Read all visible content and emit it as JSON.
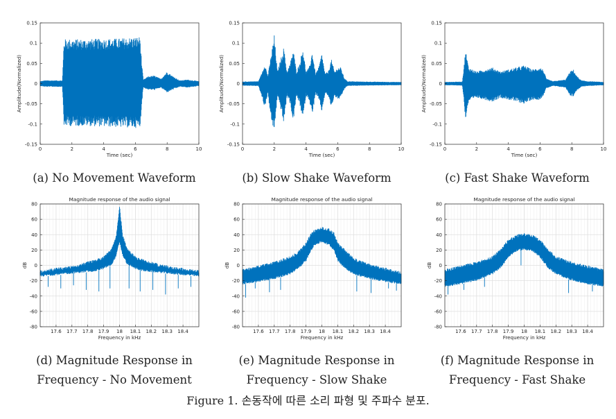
{
  "figure_caption": "Figure 1. 손동작에 따른 소리 파형 및 주파수 분포.",
  "captions": {
    "a": "(a) No Movement Waveform",
    "b": "(b) Slow Shake Waveform",
    "c": "(c) Fast Shake Waveform",
    "d1": "(d) Magnitude Response in",
    "d2": "Frequency - No Movement",
    "e1": "(e) Magnitude Response in",
    "e2": "Frequency - Slow Shake",
    "f1": "(f) Magnitude Response in",
    "f2": "Frequency - Fast Shake"
  },
  "colors": {
    "series": "#0072BD",
    "axis": "#262626",
    "grid": "#dfdfdf",
    "background": "#ffffff"
  },
  "chart_data": [
    {
      "id": "a",
      "type": "line",
      "title": "",
      "xlabel": "Time (sec)",
      "ylabel": "Amplitude(Normalized)",
      "xlim": [
        0,
        10
      ],
      "ylim": [
        -0.15,
        0.15
      ],
      "xticks": [
        0,
        2,
        4,
        6,
        8,
        10
      ],
      "yticks": [
        -0.15,
        -0.1,
        -0.05,
        0,
        0.05,
        0.1,
        0.15
      ],
      "grid": false,
      "envelope": {
        "x": [
          0,
          0.3,
          1.4,
          1.5,
          1.6,
          3,
          5,
          6.3,
          6.4,
          6.5,
          6.8,
          7.2,
          7.6,
          8.0,
          8.3,
          8.8,
          9.3,
          10
        ],
        "upper": [
          0.006,
          0.008,
          0.008,
          0.11,
          0.11,
          0.11,
          0.112,
          0.116,
          0.05,
          0.01,
          0.018,
          0.02,
          0.012,
          0.03,
          0.02,
          0.008,
          0.01,
          0.006
        ],
        "lower": [
          -0.006,
          -0.008,
          -0.008,
          -0.11,
          -0.105,
          -0.105,
          -0.108,
          -0.11,
          -0.05,
          -0.01,
          -0.015,
          -0.016,
          -0.01,
          -0.022,
          -0.016,
          -0.008,
          -0.01,
          -0.006
        ]
      }
    },
    {
      "id": "b",
      "type": "line",
      "title": "",
      "xlabel": "Time (sec)",
      "ylabel": "Amplitude(Normalized)",
      "xlim": [
        0,
        10
      ],
      "ylim": [
        -0.15,
        0.15
      ],
      "xticks": [
        0,
        2,
        4,
        6,
        8,
        10
      ],
      "yticks": [
        -0.15,
        -0.1,
        -0.05,
        0,
        0.05,
        0.1,
        0.15
      ],
      "grid": false,
      "envelope": {
        "x": [
          0,
          1.0,
          1.2,
          1.4,
          1.6,
          1.8,
          2.0,
          2.2,
          2.4,
          2.6,
          2.8,
          3.0,
          3.2,
          3.4,
          3.6,
          3.8,
          4.0,
          4.2,
          4.4,
          4.6,
          4.8,
          5.0,
          5.2,
          5.4,
          5.6,
          5.8,
          6.0,
          6.2,
          6.4,
          6.6,
          7.5,
          10
        ],
        "upper": [
          0.005,
          0.006,
          0.025,
          0.05,
          0.02,
          0.07,
          0.12,
          0.03,
          0.06,
          0.09,
          0.03,
          0.05,
          0.085,
          0.03,
          0.05,
          0.09,
          0.03,
          0.04,
          0.08,
          0.025,
          0.04,
          0.075,
          0.025,
          0.03,
          0.06,
          0.03,
          0.04,
          0.04,
          0.015,
          0.006,
          0.005,
          0.004
        ],
        "lower": [
          -0.005,
          -0.006,
          -0.03,
          -0.06,
          -0.025,
          -0.09,
          -0.12,
          -0.03,
          -0.06,
          -0.1,
          -0.03,
          -0.05,
          -0.095,
          -0.03,
          -0.05,
          -0.09,
          -0.03,
          -0.04,
          -0.08,
          -0.025,
          -0.04,
          -0.07,
          -0.025,
          -0.03,
          -0.06,
          -0.03,
          -0.04,
          -0.035,
          -0.015,
          -0.006,
          -0.005,
          -0.004
        ]
      }
    },
    {
      "id": "c",
      "type": "line",
      "title": "",
      "xlabel": "Time (sec)",
      "ylabel": "Amplitude(Normalized)",
      "xlim": [
        0,
        10
      ],
      "ylim": [
        -0.15,
        0.15
      ],
      "xticks": [
        0,
        2,
        4,
        6,
        8,
        10
      ],
      "yticks": [
        -0.15,
        -0.1,
        -0.05,
        0,
        0.05,
        0.1,
        0.15
      ],
      "grid": false,
      "envelope": {
        "x": [
          0,
          1.1,
          1.2,
          1.3,
          1.5,
          2,
          2.5,
          3,
          3.5,
          4,
          4.5,
          5,
          5.5,
          6,
          6.2,
          6.4,
          6.8,
          7.2,
          7.6,
          7.9,
          8.1,
          8.3,
          8.6,
          9,
          10
        ],
        "upper": [
          0.004,
          0.005,
          0.04,
          0.085,
          0.04,
          0.03,
          0.035,
          0.04,
          0.03,
          0.035,
          0.04,
          0.045,
          0.035,
          0.04,
          0.035,
          0.012,
          0.006,
          0.008,
          0.01,
          0.03,
          0.035,
          0.02,
          0.008,
          0.006,
          0.004
        ],
        "lower": [
          -0.004,
          -0.005,
          -0.04,
          -0.09,
          -0.045,
          -0.035,
          -0.04,
          -0.045,
          -0.035,
          -0.04,
          -0.045,
          -0.05,
          -0.04,
          -0.04,
          -0.03,
          -0.012,
          -0.006,
          -0.008,
          -0.01,
          -0.03,
          -0.032,
          -0.018,
          -0.008,
          -0.006,
          -0.004
        ]
      }
    },
    {
      "id": "d",
      "type": "line",
      "title": "Magnitude response of the audio signal",
      "xlabel": "Frequency in kHz",
      "ylabel": "dB",
      "xlim": [
        17.5,
        18.5
      ],
      "ylim": [
        -80,
        80
      ],
      "xticks": [
        17.6,
        17.7,
        17.8,
        17.9,
        18,
        18.1,
        18.2,
        18.3,
        18.4
      ],
      "yticks": [
        -80,
        -60,
        -40,
        -20,
        0,
        20,
        40,
        60,
        80
      ],
      "grid": true,
      "envelope": {
        "x": [
          17.5,
          17.55,
          17.6,
          17.65,
          17.7,
          17.75,
          17.8,
          17.85,
          17.9,
          17.95,
          17.98,
          18.0,
          18.02,
          18.05,
          18.1,
          18.15,
          18.2,
          18.25,
          18.3,
          18.35,
          18.4,
          18.45,
          18.5
        ],
        "upper": [
          -6,
          -5,
          -3,
          -2,
          0,
          2,
          5,
          8,
          12,
          22,
          40,
          78,
          40,
          22,
          12,
          8,
          5,
          2,
          0,
          -2,
          -3,
          -5,
          -6
        ],
        "lower": [
          -15,
          -14,
          -13,
          -12,
          -11,
          -10,
          -9,
          -8,
          -5,
          0,
          12,
          30,
          12,
          0,
          -5,
          -8,
          -9,
          -10,
          -11,
          -12,
          -13,
          -14,
          -15
        ],
        "dips": [
          17.55,
          17.63,
          17.71,
          17.79,
          17.87,
          17.94,
          18.06,
          18.13,
          18.21,
          18.29,
          18.37,
          18.45
        ],
        "dip_min": [
          -28,
          -30,
          -26,
          -32,
          -34,
          -30,
          -30,
          -34,
          -32,
          -38,
          -30,
          -28
        ]
      }
    },
    {
      "id": "e",
      "type": "line",
      "title": "Magnitude response of the audio signal",
      "xlabel": "Frequency in kHz",
      "ylabel": "dB",
      "xlim": [
        17.5,
        18.5
      ],
      "ylim": [
        -80,
        80
      ],
      "xticks": [
        17.6,
        17.7,
        17.8,
        17.9,
        18,
        18.1,
        18.2,
        18.3,
        18.4
      ],
      "yticks": [
        -80,
        -60,
        -40,
        -20,
        0,
        20,
        40,
        60,
        80
      ],
      "grid": true,
      "envelope": {
        "x": [
          17.5,
          17.6,
          17.7,
          17.8,
          17.85,
          17.9,
          17.93,
          17.95,
          18.0,
          18.05,
          18.08,
          18.1,
          18.15,
          18.2,
          18.3,
          18.4,
          18.5
        ],
        "upper": [
          -5,
          0,
          5,
          12,
          18,
          30,
          42,
          46,
          50,
          48,
          42,
          30,
          20,
          10,
          2,
          -3,
          -8
        ],
        "lower": [
          -25,
          -22,
          -18,
          -12,
          -5,
          5,
          18,
          25,
          30,
          25,
          18,
          5,
          -5,
          -12,
          -18,
          -22,
          -25
        ],
        "dips": [
          17.52,
          17.58,
          17.67,
          17.74,
          18.22,
          18.31,
          18.42,
          18.47
        ],
        "dip_min": [
          -42,
          -30,
          -35,
          -32,
          -34,
          -36,
          -30,
          -33
        ]
      }
    },
    {
      "id": "f",
      "type": "line",
      "title": "Magnitude response of the audio signal",
      "xlabel": "Frequency in kHz",
      "ylabel": "dB",
      "xlim": [
        17.5,
        18.5
      ],
      "ylim": [
        -80,
        80
      ],
      "xticks": [
        17.6,
        17.7,
        17.8,
        17.9,
        18,
        18.1,
        18.2,
        18.3,
        18.4
      ],
      "yticks": [
        -80,
        -60,
        -40,
        -20,
        0,
        20,
        40,
        60,
        80
      ],
      "grid": true,
      "envelope": {
        "x": [
          17.5,
          17.6,
          17.7,
          17.8,
          17.85,
          17.9,
          17.95,
          18.0,
          18.05,
          18.1,
          18.15,
          18.2,
          18.3,
          18.4,
          18.5
        ],
        "upper": [
          -5,
          0,
          5,
          12,
          22,
          34,
          40,
          42,
          40,
          34,
          22,
          12,
          5,
          0,
          -5
        ],
        "lower": [
          -28,
          -25,
          -20,
          -12,
          -4,
          10,
          18,
          20,
          18,
          10,
          -4,
          -12,
          -20,
          -25,
          -28
        ],
        "dips": [
          17.52,
          17.62,
          17.75,
          17.98,
          18.28,
          18.43
        ],
        "dip_min": [
          -38,
          -32,
          -28,
          0,
          -36,
          -34
        ]
      }
    }
  ]
}
